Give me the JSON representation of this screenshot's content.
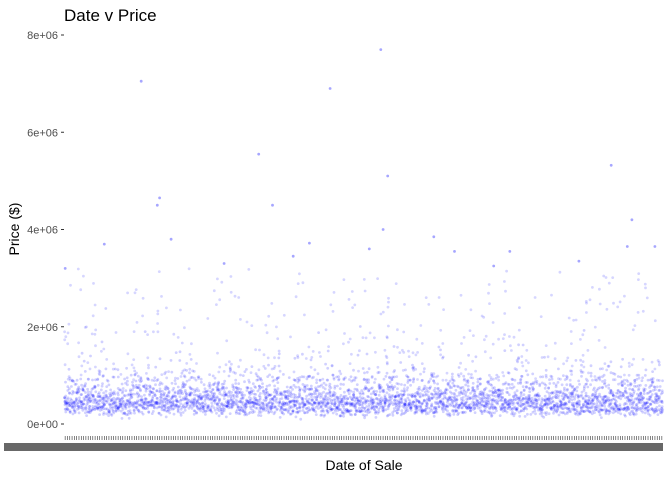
{
  "chart_data": {
    "type": "scatter",
    "title": "Date v Price",
    "xlabel": "Date of Sale",
    "ylabel": "Price ($)",
    "ylim": [
      0,
      8000000
    ],
    "yticks": [
      {
        "value": 0,
        "label": "0e+00"
      },
      {
        "value": 2000000,
        "label": "2e+06"
      },
      {
        "value": 4000000,
        "label": "4e+06"
      },
      {
        "value": 6000000,
        "label": "6e+06"
      },
      {
        "value": 8000000,
        "label": "8e+06"
      }
    ],
    "x_axis": "categorical dates; tick labels overlap into an unreadable band",
    "point_color": "#0000ff",
    "grid": false,
    "legend": "none",
    "outliers": [
      {
        "date_index": 33,
        "price": 7050000
      },
      {
        "date_index": 137,
        "price": 7700000
      },
      {
        "date_index": 115,
        "price": 6900000
      },
      {
        "date_index": 84,
        "price": 5550000
      },
      {
        "date_index": 237,
        "price": 5320000
      },
      {
        "date_index": 140,
        "price": 5100000
      },
      {
        "date_index": 41,
        "price": 4650000
      },
      {
        "date_index": 40,
        "price": 4500000
      },
      {
        "date_index": 90,
        "price": 4500000
      },
      {
        "date_index": 246,
        "price": 4200000
      },
      {
        "date_index": 138,
        "price": 4000000
      },
      {
        "date_index": 160,
        "price": 3850000
      },
      {
        "date_index": 46,
        "price": 3800000
      },
      {
        "date_index": 106,
        "price": 3720000
      },
      {
        "date_index": 17,
        "price": 3700000
      },
      {
        "date_index": 256,
        "price": 3650000
      },
      {
        "date_index": 244,
        "price": 3650000
      },
      {
        "date_index": 132,
        "price": 3600000
      },
      {
        "date_index": 169,
        "price": 3550000
      },
      {
        "date_index": 193,
        "price": 3550000
      },
      {
        "date_index": 0,
        "price": 3200000
      },
      {
        "date_index": 186,
        "price": 3250000
      },
      {
        "date_index": 223,
        "price": 3350000
      },
      {
        "date_index": 69,
        "price": 3300000
      },
      {
        "date_index": 99,
        "price": 3450000
      }
    ]
  }
}
